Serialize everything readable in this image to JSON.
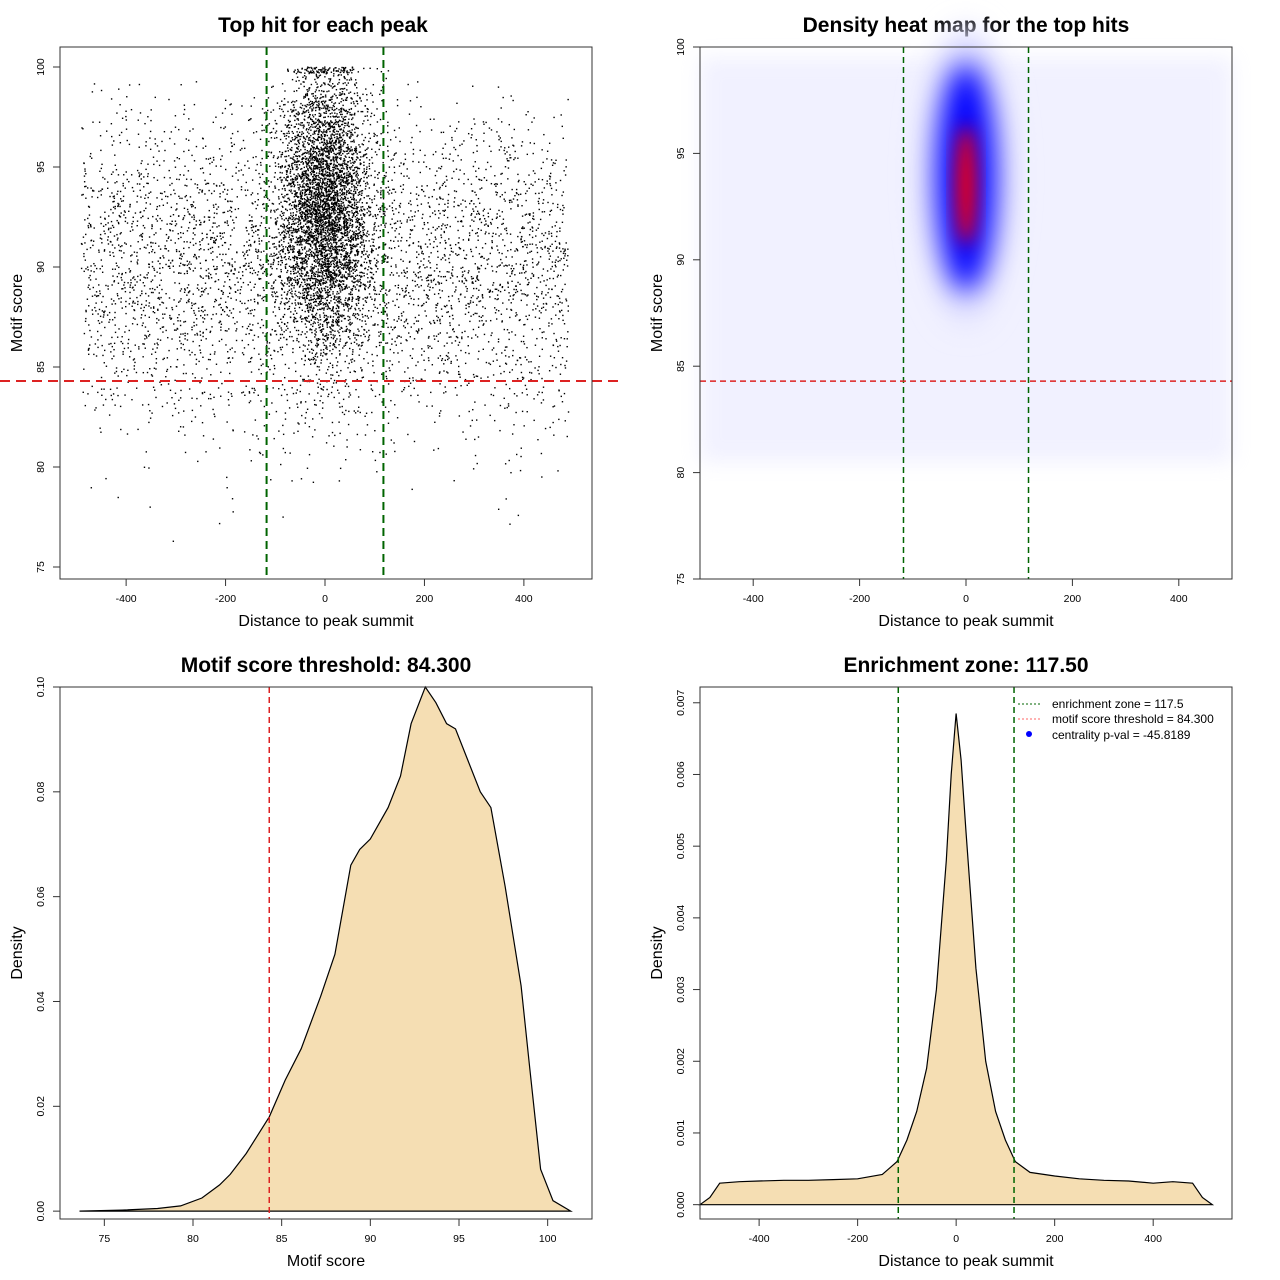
{
  "chart_data": [
    {
      "type": "scatter",
      "title": "Top hit for each peak",
      "xlabel": "Distance to peak summit",
      "ylabel": "Motif score",
      "xlim": [
        -533,
        537
      ],
      "ylim": [
        74.4,
        101
      ],
      "xticks": [
        -400,
        -200,
        0,
        200,
        400
      ],
      "yticks": [
        75,
        80,
        85,
        90,
        95,
        100
      ],
      "vlines": [
        -117.5,
        117.5
      ],
      "hline": 84.3,
      "points_summary": {
        "background": {
          "n": 4200,
          "x_range": [
            -490,
            490
          ],
          "y_mean": 90,
          "y_sd": 4
        },
        "central": {
          "n": 4800,
          "x_mean": 0,
          "x_sd": 45,
          "y_mean": 93,
          "y_sd": 3.5
        },
        "y_max": 100
      },
      "colors": {
        "points": "#000000",
        "vline": "#006400",
        "hline": "#dd2222"
      }
    },
    {
      "type": "heatmap",
      "title": "Density heat map for the top hits",
      "xlabel": "Distance to peak summit",
      "ylabel": "Motif score",
      "xlim": [
        -500,
        500
      ],
      "ylim": [
        75,
        100
      ],
      "xticks": [
        -400,
        -200,
        0,
        200,
        400
      ],
      "yticks": [
        75,
        80,
        85,
        90,
        95,
        100
      ],
      "vlines": [
        -117.5,
        117.5
      ],
      "hline": 84.3,
      "hotspot": {
        "x": 0,
        "y": 93.5
      },
      "colors": {
        "low": "#ffffff",
        "mid": "#0000ff",
        "high": "#ff0000",
        "vline": "#006400",
        "hline": "#dd2222"
      }
    },
    {
      "type": "area",
      "title": "Motif score threshold: 84.300",
      "xlabel": "Motif score",
      "ylabel": "Density",
      "xlim": [
        72.5,
        102.5
      ],
      "ylim": [
        -0.0015,
        0.1
      ],
      "xticks": [
        75,
        80,
        85,
        90,
        95,
        100
      ],
      "yticks": [
        "0.00",
        "0.02",
        "0.04",
        "0.06",
        "0.08",
        "0.10"
      ],
      "vline": 84.3,
      "x": [
        73.6,
        76,
        78,
        79.3,
        80.5,
        81.5,
        82.1,
        83,
        84.3,
        85.2,
        86.1,
        87.2,
        88,
        88.9,
        89.4,
        90,
        91,
        91.7,
        92.3,
        93.1,
        93.7,
        94.3,
        94.8,
        95.5,
        96.2,
        96.8,
        97.6,
        98.5,
        99,
        99.6,
        100.3,
        101.3
      ],
      "y": [
        0,
        0.0002,
        0.0005,
        0.001,
        0.0025,
        0.005,
        0.007,
        0.011,
        0.018,
        0.025,
        0.031,
        0.041,
        0.049,
        0.066,
        0.069,
        0.071,
        0.077,
        0.083,
        0.093,
        0.1,
        0.097,
        0.093,
        0.092,
        0.086,
        0.08,
        0.077,
        0.062,
        0.043,
        0.027,
        0.008,
        0.002,
        0
      ],
      "colors": {
        "fill": "#f5deb3",
        "line": "#000000",
        "vline": "#dd2222"
      }
    },
    {
      "type": "area",
      "title": "Enrichment zone: 117.50",
      "xlabel": "Distance to peak summit",
      "ylabel": "Density",
      "xlim": [
        -520,
        560
      ],
      "ylim": [
        -0.0002,
        0.00722
      ],
      "xticks": [
        -400,
        -200,
        0,
        200,
        400
      ],
      "yticks": [
        "0.000",
        "0.001",
        "0.002",
        "0.003",
        "0.004",
        "0.005",
        "0.006",
        "0.007"
      ],
      "vlines": [
        -117.5,
        117.5
      ],
      "x": [
        -520,
        -500,
        -480,
        -440,
        -400,
        -350,
        -300,
        -250,
        -200,
        -150,
        -120,
        -100,
        -80,
        -60,
        -40,
        -20,
        -10,
        0,
        10,
        20,
        40,
        60,
        80,
        100,
        120,
        150,
        200,
        250,
        300,
        350,
        400,
        440,
        480,
        500,
        520
      ],
      "y": [
        0,
        0.0001,
        0.0003,
        0.00032,
        0.00033,
        0.00034,
        0.00034,
        0.00035,
        0.00036,
        0.00042,
        0.0006,
        0.0009,
        0.0013,
        0.0019,
        0.003,
        0.0048,
        0.006,
        0.00685,
        0.0062,
        0.0052,
        0.0033,
        0.002,
        0.0013,
        0.0009,
        0.0006,
        0.00045,
        0.0004,
        0.00036,
        0.00034,
        0.00033,
        0.0003,
        0.00032,
        0.0003,
        0.0001,
        0
      ],
      "legend": {
        "placement": "top-right",
        "entries": [
          "enrichment zone = 117.5",
          "motif score threshold = 84.300",
          "centrality p-val = -45.8189"
        ]
      },
      "colors": {
        "fill": "#f5deb3",
        "line": "#000000",
        "vline": "#006400",
        "legend_zone": "#006400",
        "legend_threshold": "#ff6666",
        "legend_pval": "#0000ff"
      }
    }
  ]
}
